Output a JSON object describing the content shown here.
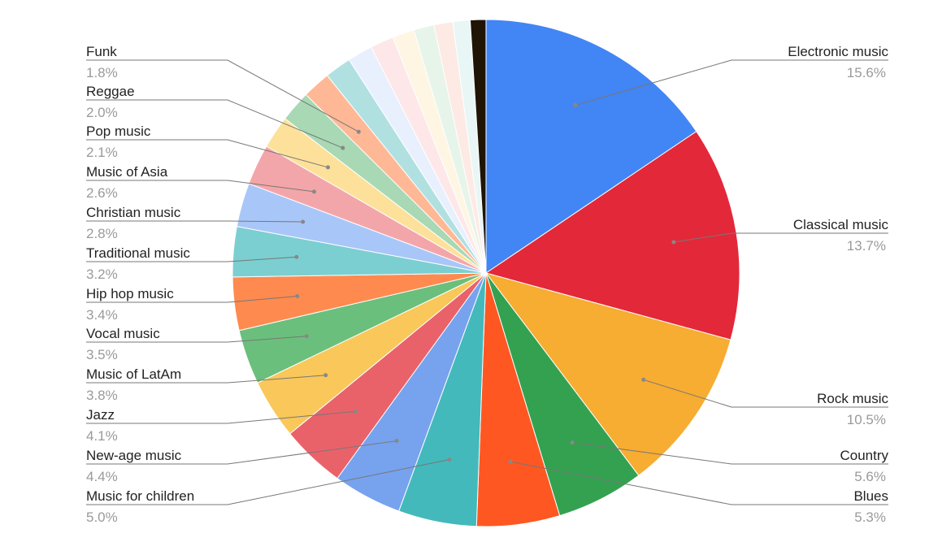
{
  "chart_data": {
    "type": "pie",
    "title": "",
    "slices": [
      {
        "name": "Electronic music",
        "value": 15.6,
        "label": "15.6%",
        "color": "#4285f4",
        "labeled": true
      },
      {
        "name": "Classical music",
        "value": 13.7,
        "label": "13.7%",
        "color": "#e3283a",
        "labeled": true
      },
      {
        "name": "Rock music",
        "value": 10.5,
        "label": "10.5%",
        "color": "#f7ac32",
        "labeled": true
      },
      {
        "name": "Country",
        "value": 5.6,
        "label": "5.6%",
        "color": "#34a151",
        "labeled": true
      },
      {
        "name": "Blues",
        "value": 5.3,
        "label": "5.3%",
        "color": "#ff5722",
        "labeled": true
      },
      {
        "name": "Music for children",
        "value": 5.0,
        "label": "5.0%",
        "color": "#44b9bc",
        "labeled": true
      },
      {
        "name": "New-age music",
        "value": 4.4,
        "label": "4.4%",
        "color": "#77a2ee",
        "labeled": true
      },
      {
        "name": "Jazz",
        "value": 4.1,
        "label": "4.1%",
        "color": "#e9626a",
        "labeled": true
      },
      {
        "name": "Music of LatAm",
        "value": 3.8,
        "label": "3.8%",
        "color": "#f9c75a",
        "labeled": true
      },
      {
        "name": "Vocal music",
        "value": 3.5,
        "label": "3.5%",
        "color": "#6bbf7c",
        "labeled": true
      },
      {
        "name": "Hip hop music",
        "value": 3.4,
        "label": "3.4%",
        "color": "#ff8a4f",
        "labeled": true
      },
      {
        "name": "Traditional music",
        "value": 3.2,
        "label": "3.2%",
        "color": "#7ccfd0",
        "labeled": true
      },
      {
        "name": "Christian music",
        "value": 2.8,
        "label": "2.8%",
        "color": "#a9c6f8",
        "labeled": true
      },
      {
        "name": "Music of Asia",
        "value": 2.6,
        "label": "2.6%",
        "color": "#f3a6a9",
        "labeled": true
      },
      {
        "name": "Pop music",
        "value": 2.1,
        "label": "2.1%",
        "color": "#fde19a",
        "labeled": true
      },
      {
        "name": "Reggae",
        "value": 2.0,
        "label": "2.0%",
        "color": "#a8d8b4",
        "labeled": true
      },
      {
        "name": "Funk",
        "value": 1.8,
        "label": "1.8%",
        "color": "#ffb896",
        "labeled": true
      },
      {
        "name": "",
        "value": 1.7,
        "label": "",
        "color": "#b1e0e1",
        "labeled": false
      },
      {
        "name": "",
        "value": 1.6,
        "label": "",
        "color": "#e8f0fd",
        "labeled": false
      },
      {
        "name": "",
        "value": 1.5,
        "label": "",
        "color": "#fde7e9",
        "labeled": false
      },
      {
        "name": "",
        "value": 1.4,
        "label": "",
        "color": "#fef6e3",
        "labeled": false
      },
      {
        "name": "",
        "value": 1.3,
        "label": "",
        "color": "#e7f4ea",
        "labeled": false
      },
      {
        "name": "",
        "value": 1.2,
        "label": "",
        "color": "#fdeae4",
        "labeled": false
      },
      {
        "name": "",
        "value": 1.1,
        "label": "",
        "color": "#e9f6f6",
        "labeled": false
      },
      {
        "name": "",
        "value": 1.0,
        "label": "",
        "color": "#1f1405",
        "labeled": false
      }
    ]
  }
}
